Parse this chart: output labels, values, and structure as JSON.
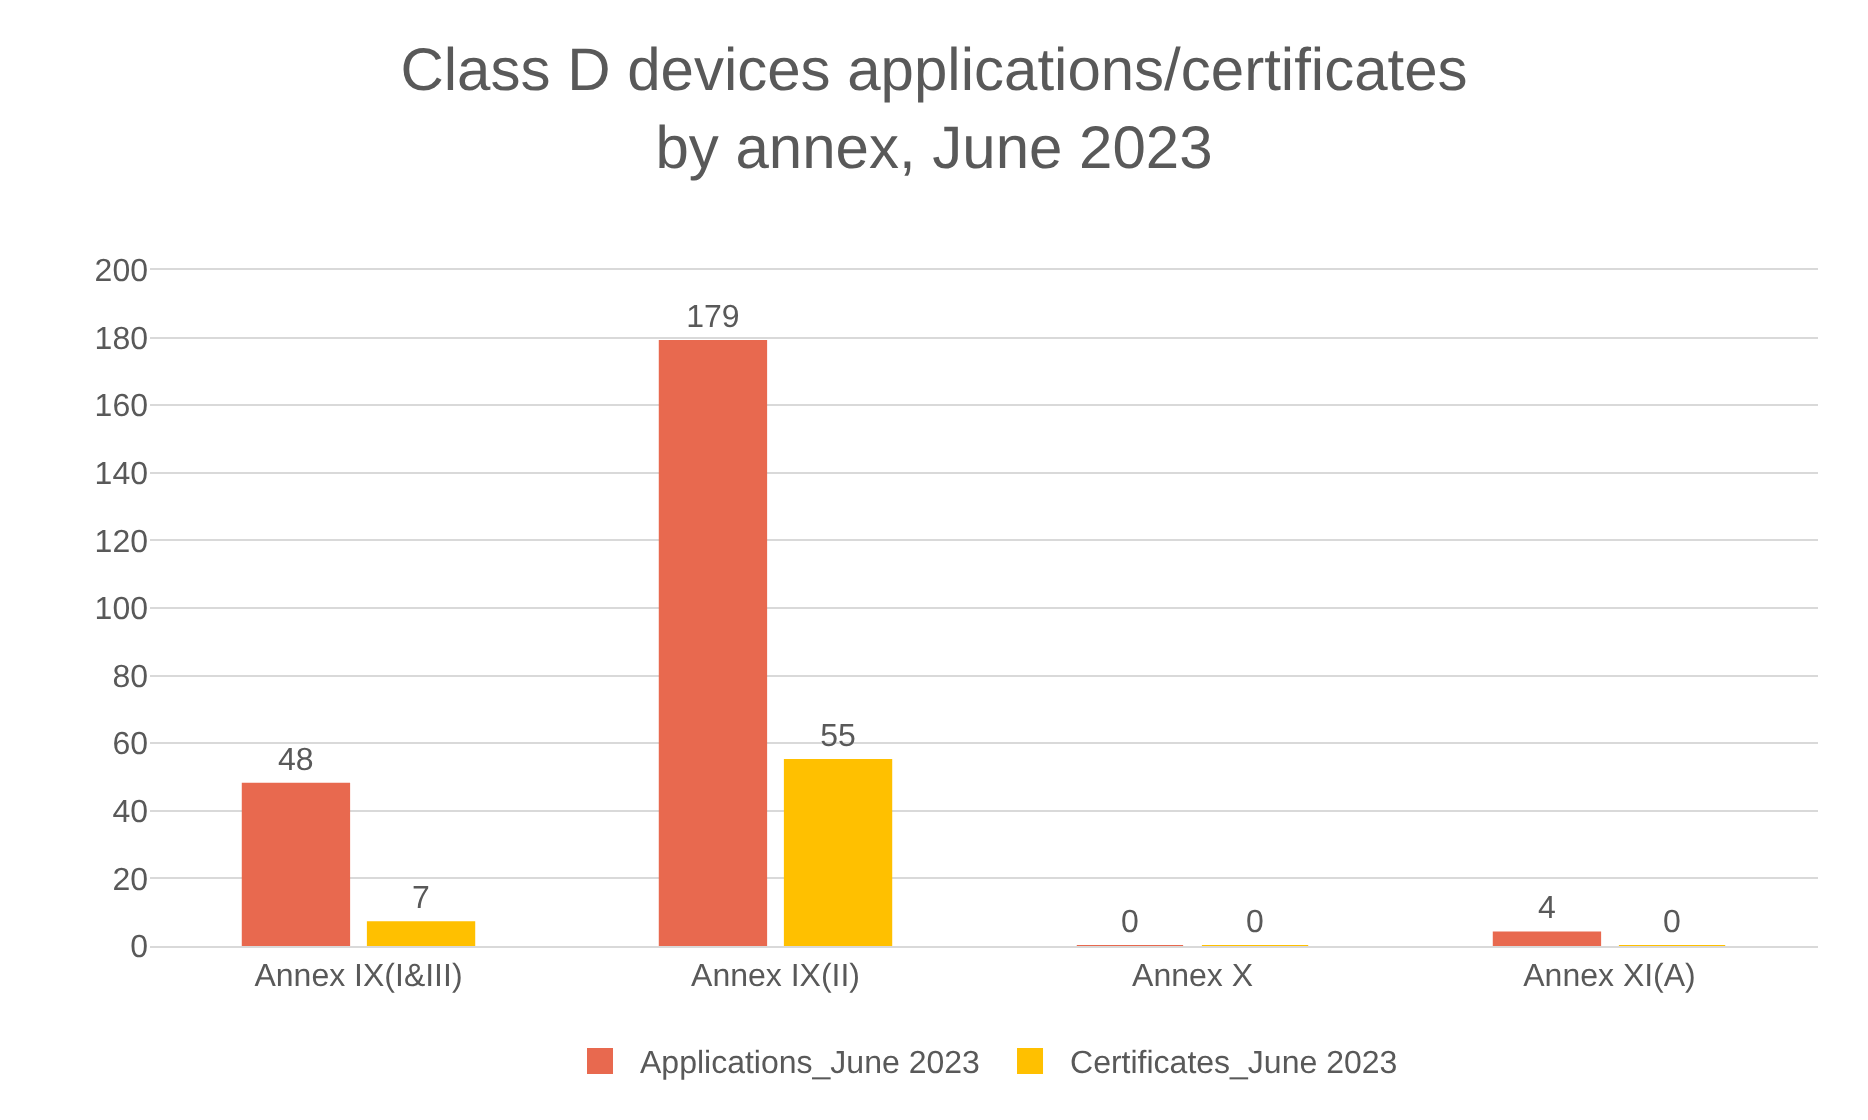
{
  "chart_data": {
    "type": "bar",
    "title": "Class D devices applications/certificates\nby annex, June 2023",
    "categories": [
      "Annex IX(I&III)",
      "Annex IX(II)",
      "Annex X",
      "Annex XI(A)"
    ],
    "series": [
      {
        "name": "Applications_June 2023",
        "color": "#e8694f",
        "values": [
          48,
          179,
          0,
          4
        ]
      },
      {
        "name": "Certificates_June 2023",
        "color": "#ffc000",
        "values": [
          7,
          55,
          0,
          0
        ]
      }
    ],
    "ylim": [
      0,
      200
    ],
    "yticks": [
      0,
      20,
      40,
      60,
      80,
      100,
      120,
      140,
      160,
      180,
      200
    ],
    "grid": "y",
    "legend": "bottom",
    "data_labels": true
  }
}
